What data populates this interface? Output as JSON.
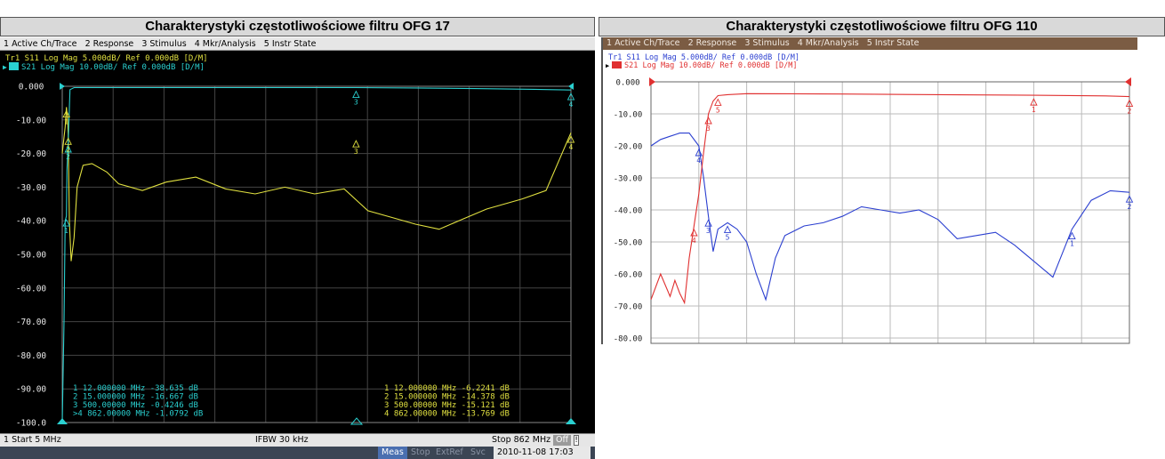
{
  "left": {
    "title": "Charakterystyki częstotliwościowe filtru OFG 17",
    "menu": "1 Active Ch/Trace   2 Response   3 Stimulus   4 Mkr/Analysis   5 Instr State",
    "trace1": "Tr1  S11  Log Mag 5.000dB/ Ref 0.000dB  [D/M]",
    "trace2": "Tr2  S21  Log Mag 10.00dB/ Ref 0.000dB  [D/M]",
    "start": "1  Start 5 MHz",
    "ifbw": "IFBW 30 kHz",
    "stop": "Stop 862 MHz",
    "off": "Off",
    "status": [
      "Meas",
      "Stop",
      "ExtRef",
      "Svc"
    ],
    "datetime": "2010-11-08 17:03",
    "markers_left": [
      "1   12.000000 MHz  -38.635 dB",
      "2   15.000000 MHz  -16.667 dB",
      "3  500.00000 MHz  -0.4246 dB",
      ">4  862.00000 MHz  -1.0792 dB"
    ],
    "markers_right": [
      "1   12.000000 MHz  -6.2241 dB",
      "2   15.000000 MHz  -14.378 dB",
      "3  500.00000 MHz  -15.121 dB",
      "4  862.00000 MHz  -13.769 dB"
    ]
  },
  "right": {
    "title": "Charakterystyki częstotliwościowe filtru OFG 110",
    "menu": "1 Active Ch/Trace   2 Response   3 Stimulus   4 Mkr/Analysis   5 Instr State",
    "trace1": "Tr1  S11  Log Mag 5.000dB/ Ref 0.000dB  [D/M]",
    "trace2": "Tr2  S21  Log Mag 10.00dB/ Ref 0.000dB  [D/M]"
  },
  "chart_data": [
    {
      "type": "line",
      "title": "Charakterystyki częstotliwościowe filtru OFG 17",
      "xlim": [
        5,
        862
      ],
      "ylim": [
        -100,
        0
      ],
      "yticks": [
        "0.000",
        "-10.00",
        "-20.00",
        "-30.00",
        "-40.00",
        "-50.00",
        "-60.00",
        "-70.00",
        "-80.00",
        "-90.00",
        "-100.0"
      ],
      "grid": true,
      "background": "#000000",
      "series": [
        {
          "name": "S21",
          "color": "#2ad0d0",
          "x": [
            5,
            8,
            10,
            12,
            13,
            15,
            18,
            25,
            50,
            100,
            200,
            300,
            400,
            500,
            600,
            700,
            800,
            862
          ],
          "y": [
            -100,
            -70,
            -40,
            -38.6,
            -25,
            -16.7,
            -1,
            -0.4,
            -0.4,
            -0.4,
            -0.4,
            -0.4,
            -0.4,
            -0.4,
            -0.5,
            -0.7,
            -0.9,
            -1.1
          ]
        },
        {
          "name": "S11",
          "color": "#e0e040",
          "x": [
            5,
            10,
            12,
            14,
            15,
            17,
            20,
            25,
            30,
            40,
            55,
            80,
            100,
            140,
            180,
            230,
            280,
            330,
            380,
            430,
            480,
            520,
            560,
            600,
            640,
            680,
            720,
            780,
            820,
            862
          ],
          "y": [
            -20,
            -12,
            -6.2,
            -10,
            -14.4,
            -40,
            -52,
            -45,
            -30,
            -23.5,
            -23,
            -25.5,
            -29,
            -31,
            -28.5,
            -27,
            -30.5,
            -32,
            -30,
            -32,
            -30.5,
            -37,
            -39,
            -41,
            -42.5,
            -39.5,
            -36.5,
            -33.5,
            -31,
            -13.8
          ]
        }
      ],
      "markers_s21": [
        {
          "id": "1",
          "x": 12,
          "y": -38.635
        },
        {
          "id": "2",
          "x": 15,
          "y": -16.667
        },
        {
          "id": "3",
          "x": 500,
          "y": -0.4246
        },
        {
          "id": "4",
          "x": 862,
          "y": -1.0792
        }
      ],
      "markers_s11": [
        {
          "id": "1",
          "x": 12,
          "y": -6.2241
        },
        {
          "id": "2",
          "x": 15,
          "y": -14.378
        },
        {
          "id": "3",
          "x": 500,
          "y": -15.121
        },
        {
          "id": "4",
          "x": 862,
          "y": -13.769
        }
      ]
    },
    {
      "type": "line",
      "title": "Charakterystyki częstotliwościowe filtru OFG 110",
      "ylim": [
        -80,
        0
      ],
      "yticks": [
        "0.000",
        "-10.00",
        "-20.00",
        "-30.00",
        "-40.00",
        "-50.00",
        "-60.00",
        "-70.00",
        "-80.00"
      ],
      "grid": true,
      "background": "#ffffff",
      "series": [
        {
          "name": "S21",
          "color": "#e03030",
          "x": [
            0,
            2,
            4,
            5,
            6,
            7,
            8,
            9,
            10,
            11,
            12,
            13,
            14,
            16,
            20,
            40,
            60,
            80,
            95,
            100
          ],
          "y": [
            -68,
            -60,
            -67,
            -62,
            -66,
            -69,
            -55,
            -45,
            -35,
            -22,
            -10,
            -6,
            -4.3,
            -4,
            -3.7,
            -3.8,
            -4,
            -4.2,
            -4.4,
            -4.6
          ]
        },
        {
          "name": "S11",
          "color": "#2b3fd0",
          "x": [
            0,
            2,
            4,
            6,
            8,
            10,
            11,
            12,
            13,
            14,
            16,
            18,
            20,
            22,
            24,
            26,
            28,
            32,
            36,
            40,
            44,
            48,
            52,
            56,
            60,
            64,
            68,
            72,
            76,
            80,
            84,
            88,
            92,
            96,
            100
          ],
          "y": [
            -20,
            -18,
            -17,
            -16,
            -16,
            -20,
            -30,
            -42,
            -53,
            -46,
            -44,
            -46,
            -50,
            -60,
            -68,
            -55,
            -48,
            -45,
            -44,
            -42,
            -39,
            -40,
            -41,
            -40,
            -43,
            -49,
            -48,
            -47,
            -51,
            -56,
            -61,
            -46,
            -37,
            -34,
            -34.5
          ]
        }
      ],
      "markers_s21": [
        {
          "id": "1",
          "x": 80,
          "y": -4.2
        },
        {
          "id": "2",
          "x": 100,
          "y": -4.6
        },
        {
          "id": "3",
          "x": 12,
          "y": -10
        },
        {
          "id": "4",
          "x": 9,
          "y": -45
        },
        {
          "id": "5",
          "x": 14,
          "y": -4.3
        }
      ],
      "markers_s11": [
        {
          "id": "1",
          "x": 88,
          "y": -46
        },
        {
          "id": "2",
          "x": 100,
          "y": -34.5
        },
        {
          "id": "3",
          "x": 12,
          "y": -42
        },
        {
          "id": "4",
          "x": 10,
          "y": -20
        },
        {
          "id": "5",
          "x": 16,
          "y": -44
        }
      ]
    }
  ]
}
